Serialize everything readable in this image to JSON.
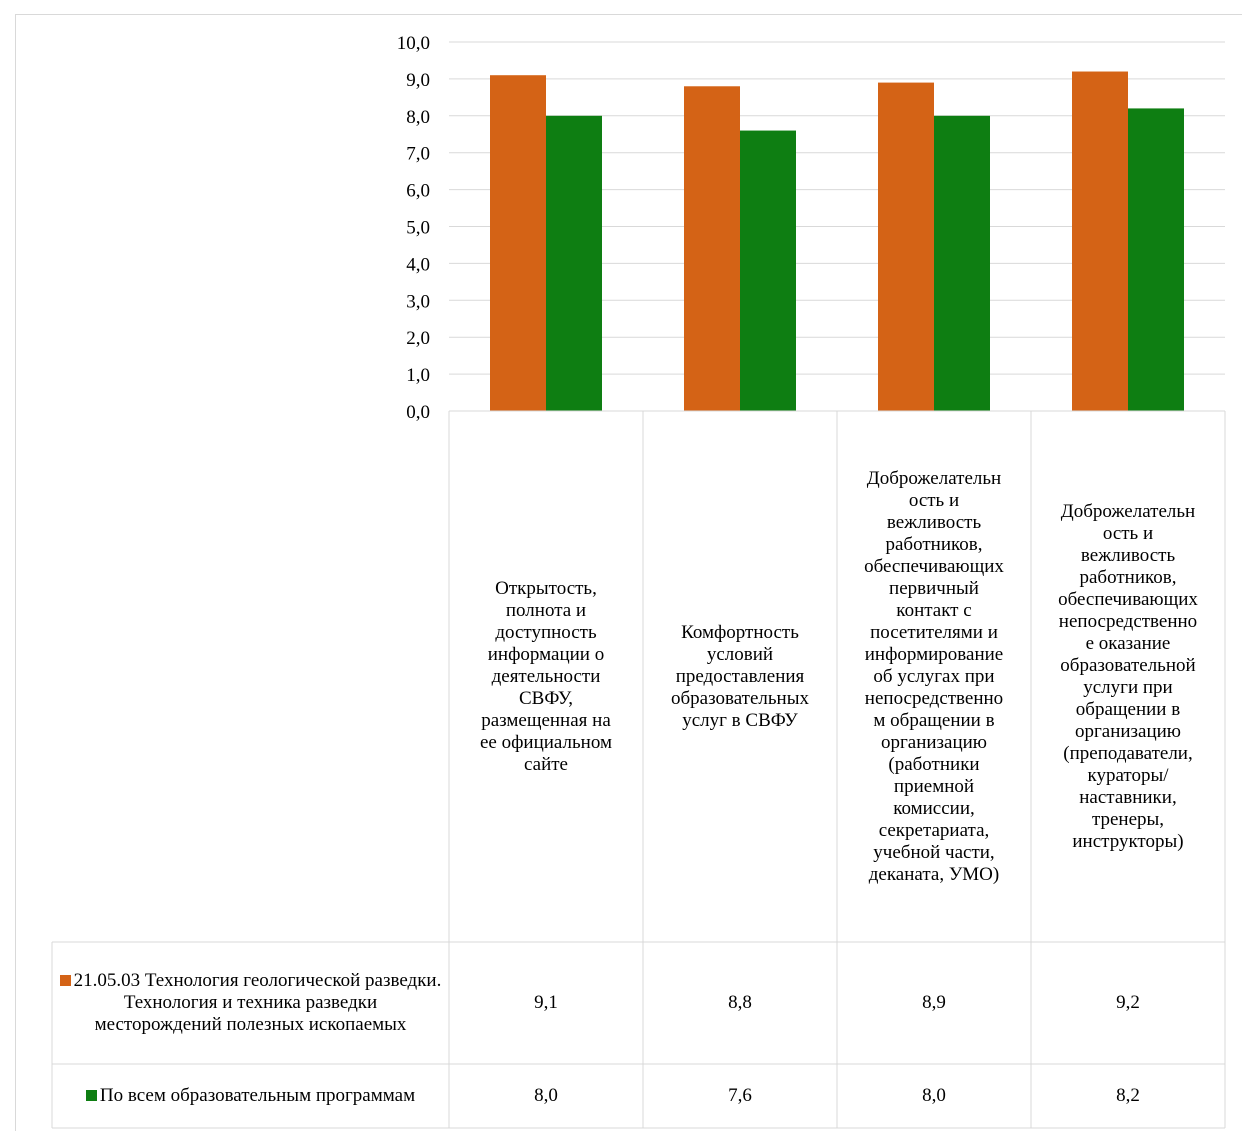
{
  "chart_data": {
    "type": "bar",
    "ylim": [
      0,
      10
    ],
    "y_ticks": [
      "0,0",
      "1,0",
      "2,0",
      "3,0",
      "4,0",
      "5,0",
      "6,0",
      "7,0",
      "8,0",
      "9,0",
      "10,0"
    ],
    "grid": true,
    "legend_placement": "data-table",
    "categories": [
      "Открытость,\nполнота и\nдоступность\nинформации о\nдеятельности\nСВФУ,\nразмещенная на\nее официальном\nсайте",
      "Комфортность\nусловий\nпредоставления\nобразовательных\nуслуг в СВФУ",
      "Доброжелательн\nость и\nвежливость\nработников,\nобеспечивающих\nпервичный\nконтакт с\nпосетителями и\nинформирование\nоб услугах при\nнепосредственно\nм обращении в\nорганизацию\n(работники\nприемной\nкомиссии,\nсекретариата,\nучебной части,\nдеканата, УМО)",
      "Доброжелательн\nость и\nвежливость\nработников,\nобеспечивающих\nнепосредственно\nе оказание\nобразовательной\nуслуги при\nобращении в\nорганизацию\n(преподаватели,\nкураторы/\nнаставники,\nтренеры,\nинструкторы)"
    ],
    "series": [
      {
        "name": "21.05.03 Технология геологической разведки. Технология и техника разведки месторождений полезных ископаемых",
        "color": "#D46316",
        "values": [
          9.1,
          8.8,
          8.9,
          9.2
        ],
        "labels": [
          "9,1",
          "8,8",
          "8,9",
          "9,2"
        ]
      },
      {
        "name": "По всем образовательным программам",
        "color": "#0E7E12",
        "values": [
          8.0,
          7.6,
          8.0,
          8.2
        ],
        "labels": [
          "8,0",
          "7,6",
          "8,0",
          "8,2"
        ]
      }
    ]
  }
}
